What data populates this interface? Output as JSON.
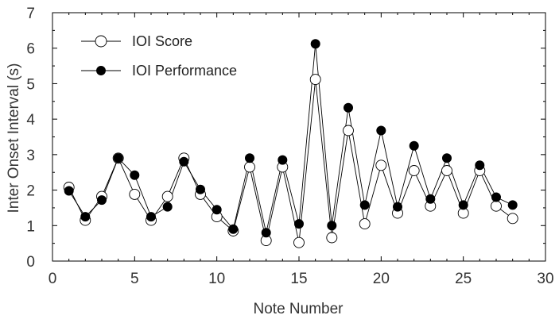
{
  "chart_data": {
    "type": "line",
    "xlabel": "Note Number",
    "ylabel": "Inter Onset Interval (s)",
    "xlim": [
      0,
      30
    ],
    "ylim": [
      0,
      7
    ],
    "x_ticks": [
      0,
      5,
      10,
      15,
      20,
      25,
      30
    ],
    "y_ticks": [
      0,
      1,
      2,
      3,
      4,
      5,
      6,
      7
    ],
    "grid": false,
    "legend_position": "top-left",
    "x": [
      1,
      2,
      3,
      4,
      5,
      6,
      7,
      8,
      9,
      10,
      11,
      12,
      13,
      14,
      15,
      16,
      17,
      18,
      19,
      20,
      21,
      22,
      23,
      24,
      25,
      26,
      27,
      28
    ],
    "series": [
      {
        "name": "IOI Score",
        "marker": "open-circle",
        "values": [
          2.08,
          1.15,
          1.82,
          2.9,
          1.88,
          1.15,
          1.82,
          2.9,
          1.88,
          1.25,
          0.85,
          2.65,
          0.58,
          2.65,
          0.52,
          5.12,
          0.66,
          3.68,
          1.05,
          2.7,
          1.35,
          2.55,
          1.55,
          2.55,
          1.35,
          2.55,
          1.55,
          1.2
        ]
      },
      {
        "name": "IOI Performance",
        "marker": "filled-circle",
        "values": [
          1.98,
          1.25,
          1.72,
          2.9,
          2.42,
          1.25,
          1.53,
          2.8,
          2.02,
          1.45,
          0.9,
          2.9,
          0.8,
          2.85,
          1.05,
          6.12,
          1.0,
          4.32,
          1.58,
          3.68,
          1.53,
          3.25,
          1.75,
          2.9,
          1.58,
          2.7,
          1.8,
          1.58
        ]
      }
    ]
  }
}
